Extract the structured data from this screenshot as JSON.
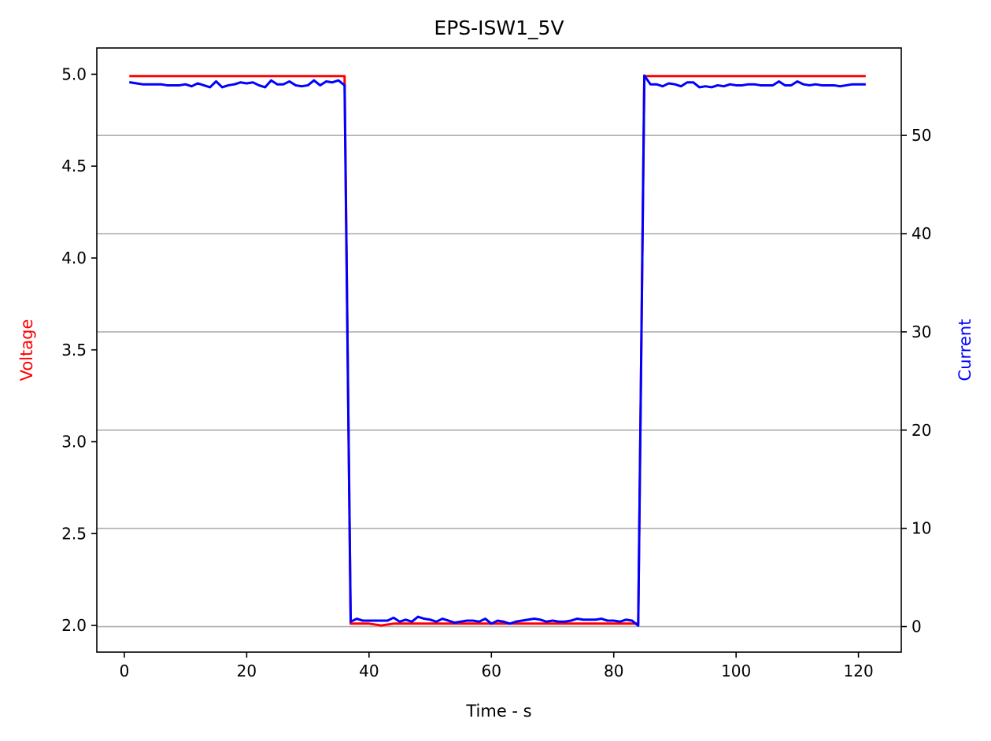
{
  "chart_data": {
    "type": "line",
    "title": "EPS-ISW1_5V",
    "xlabel": "Time - s",
    "ylabel_left": "Voltage",
    "ylabel_right": "Current",
    "xlim": [
      -4.5,
      127
    ],
    "ylim_left": [
      1.855,
      5.143
    ],
    "ylim_right": [
      -2.6,
      58.9
    ],
    "x_ticks": [
      0,
      20,
      40,
      60,
      80,
      100,
      120
    ],
    "y_ticks_left": [
      2.0,
      2.5,
      3.0,
      3.5,
      4.0,
      4.5,
      5.0
    ],
    "y_ticks_right": [
      0,
      10,
      20,
      30,
      40,
      50
    ],
    "grid": "horizontal at right-axis ticks",
    "colors": {
      "voltage": "#ff0000",
      "current": "#0000ff",
      "grid": "#b0b0b0",
      "right_label": "#0000ff",
      "left_label": "#ff0000"
    },
    "series": [
      {
        "name": "Voltage",
        "axis": "left",
        "x": [
          1,
          36,
          37,
          40,
          42,
          44,
          46,
          48,
          50,
          52,
          54,
          56,
          58,
          60,
          62,
          64,
          66,
          68,
          70,
          72,
          74,
          76,
          78,
          80,
          82,
          84,
          85,
          121
        ],
        "values": [
          4.99,
          4.99,
          2.01,
          2.01,
          2.0,
          2.01,
          2.01,
          2.01,
          2.01,
          2.01,
          2.01,
          2.01,
          2.01,
          2.01,
          2.01,
          2.01,
          2.01,
          2.01,
          2.01,
          2.01,
          2.01,
          2.01,
          2.01,
          2.01,
          2.01,
          2.01,
          4.99,
          4.99
        ]
      },
      {
        "name": "Current",
        "axis": "right",
        "x": [
          1,
          2,
          3,
          4,
          5,
          6,
          7,
          8,
          9,
          10,
          11,
          12,
          13,
          14,
          15,
          16,
          17,
          18,
          19,
          20,
          21,
          22,
          23,
          24,
          25,
          26,
          27,
          28,
          29,
          30,
          31,
          32,
          33,
          34,
          35,
          36,
          37,
          38,
          39,
          40,
          41,
          42,
          43,
          44,
          45,
          46,
          47,
          48,
          49,
          50,
          51,
          52,
          53,
          54,
          55,
          56,
          57,
          58,
          59,
          60,
          61,
          62,
          63,
          64,
          65,
          66,
          67,
          68,
          69,
          70,
          71,
          72,
          73,
          74,
          75,
          76,
          77,
          78,
          79,
          80,
          81,
          82,
          83,
          84,
          85,
          86,
          87,
          88,
          89,
          90,
          91,
          92,
          93,
          94,
          95,
          96,
          97,
          98,
          99,
          100,
          101,
          102,
          103,
          104,
          105,
          106,
          107,
          108,
          109,
          110,
          111,
          112,
          113,
          114,
          115,
          116,
          117,
          118,
          119,
          120,
          121
        ],
        "values": [
          55.4,
          55.3,
          55.2,
          55.2,
          55.2,
          55.2,
          55.1,
          55.1,
          55.1,
          55.2,
          55.0,
          55.3,
          55.1,
          54.9,
          55.5,
          54.9,
          55.1,
          55.2,
          55.4,
          55.3,
          55.4,
          55.1,
          54.9,
          55.6,
          55.2,
          55.2,
          55.5,
          55.1,
          55.0,
          55.1,
          55.6,
          55.1,
          55.5,
          55.4,
          55.6,
          55.1,
          0.5,
          0.8,
          0.6,
          0.6,
          0.6,
          0.6,
          0.6,
          0.9,
          0.5,
          0.7,
          0.5,
          1.0,
          0.8,
          0.7,
          0.5,
          0.8,
          0.6,
          0.4,
          0.5,
          0.6,
          0.6,
          0.5,
          0.8,
          0.3,
          0.6,
          0.5,
          0.3,
          0.5,
          0.6,
          0.7,
          0.8,
          0.7,
          0.5,
          0.6,
          0.5,
          0.5,
          0.6,
          0.8,
          0.7,
          0.7,
          0.7,
          0.8,
          0.6,
          0.6,
          0.5,
          0.7,
          0.6,
          0.1,
          56.1,
          55.2,
          55.2,
          55.0,
          55.3,
          55.2,
          55.0,
          55.4,
          55.4,
          54.9,
          55.0,
          54.9,
          55.1,
          55.0,
          55.2,
          55.1,
          55.1,
          55.2,
          55.2,
          55.1,
          55.1,
          55.1,
          55.5,
          55.1,
          55.1,
          55.5,
          55.2,
          55.1,
          55.2,
          55.1,
          55.1,
          55.1,
          55.0,
          55.1,
          55.2,
          55.2,
          55.2
        ]
      }
    ]
  }
}
